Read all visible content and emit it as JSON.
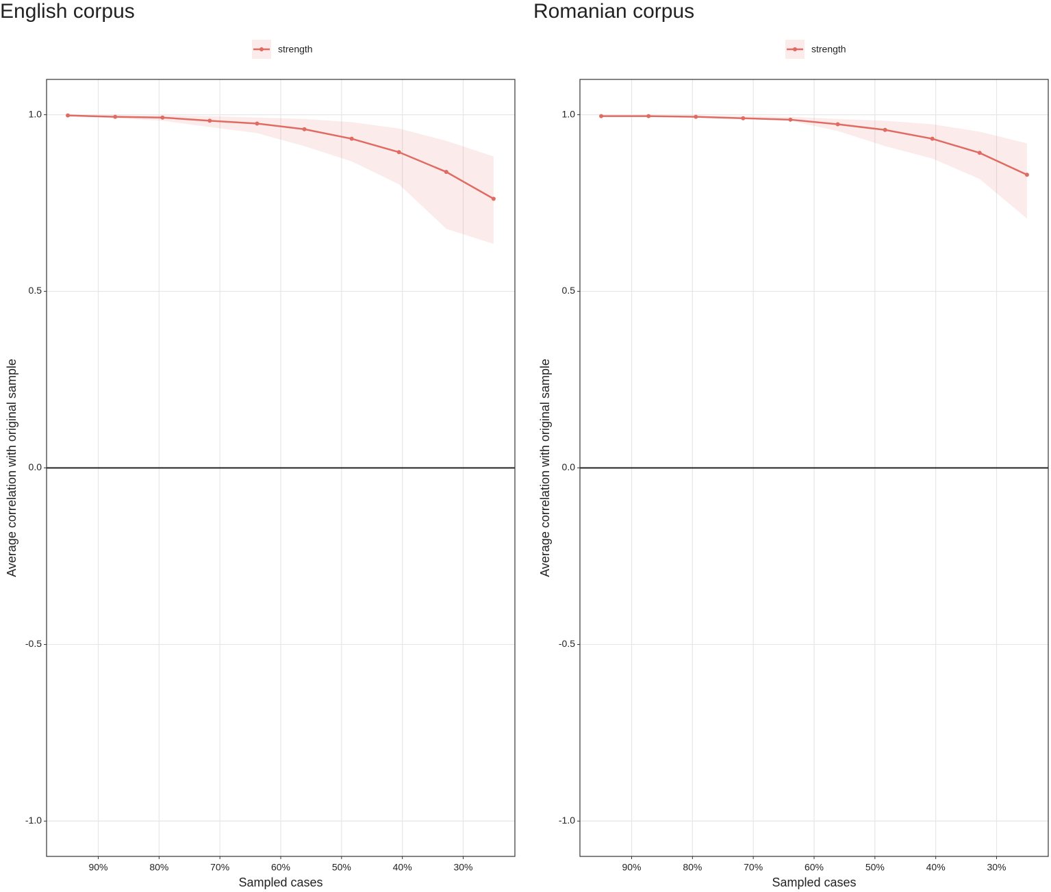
{
  "chart_data": [
    {
      "type": "line",
      "title": "English corpus",
      "xlabel": "Sampled cases",
      "ylabel": "Average correlation with original sample",
      "legend": "top",
      "grid": true,
      "hline": 0,
      "x": [
        95,
        87.22,
        79.44,
        71.67,
        63.89,
        56.11,
        48.33,
        40.56,
        32.78,
        25
      ],
      "xlim": [
        98.5,
        21.5
      ],
      "xticks": [
        {
          "value": 90,
          "label": "90%"
        },
        {
          "value": 80,
          "label": "80%"
        },
        {
          "value": 70,
          "label": "70%"
        },
        {
          "value": 60,
          "label": "60%"
        },
        {
          "value": 50,
          "label": "50%"
        },
        {
          "value": 40,
          "label": "40%"
        },
        {
          "value": 30,
          "label": "30%"
        }
      ],
      "ylim": [
        -1.1,
        1.1
      ],
      "yticks": [
        {
          "value": -1,
          "label": "-1.0"
        },
        -0.5,
        {
          "value": 0,
          "label": "0.0"
        },
        0.5,
        {
          "value": 1,
          "label": "1.0"
        }
      ],
      "series": [
        {
          "name": "strength",
          "color": "#e06b62",
          "values": [
            0.998,
            0.994,
            0.992,
            0.983,
            0.975,
            0.959,
            0.932,
            0.894,
            0.838,
            0.762
          ],
          "ci_upper": [
            1.0,
            0.998,
            0.998,
            0.996,
            0.992,
            0.988,
            0.979,
            0.961,
            0.926,
            0.882
          ],
          "ci_lower": [
            0.996,
            0.99,
            0.983,
            0.965,
            0.948,
            0.911,
            0.868,
            0.803,
            0.677,
            0.634
          ]
        }
      ]
    },
    {
      "type": "line",
      "title": "Romanian corpus",
      "xlabel": "Sampled cases",
      "ylabel": "Average correlation with original sample",
      "legend": "top",
      "grid": true,
      "hline": 0,
      "x": [
        95,
        87.22,
        79.44,
        71.67,
        63.89,
        56.11,
        48.33,
        40.56,
        32.78,
        25
      ],
      "xlim": [
        98.5,
        21.5
      ],
      "xticks": [
        {
          "value": 90,
          "label": "90%"
        },
        {
          "value": 80,
          "label": "80%"
        },
        {
          "value": 70,
          "label": "70%"
        },
        {
          "value": 60,
          "label": "60%"
        },
        {
          "value": 50,
          "label": "50%"
        },
        {
          "value": 40,
          "label": "40%"
        },
        {
          "value": 30,
          "label": "30%"
        }
      ],
      "ylim": [
        -1.1,
        1.1
      ],
      "yticks": [
        {
          "value": -1,
          "label": "-1.0"
        },
        -0.5,
        {
          "value": 0,
          "label": "0.0"
        },
        0.5,
        {
          "value": 1,
          "label": "1.0"
        }
      ],
      "series": [
        {
          "name": "strength",
          "color": "#e06b62",
          "values": [
            0.996,
            0.996,
            0.994,
            0.99,
            0.986,
            0.973,
            0.957,
            0.932,
            0.892,
            0.83
          ],
          "ci_upper": [
            0.998,
            0.998,
            0.998,
            0.996,
            0.994,
            0.988,
            0.983,
            0.973,
            0.952,
            0.919
          ],
          "ci_lower": [
            0.996,
            0.994,
            0.992,
            0.988,
            0.983,
            0.954,
            0.911,
            0.876,
            0.818,
            0.706
          ]
        }
      ]
    }
  ]
}
